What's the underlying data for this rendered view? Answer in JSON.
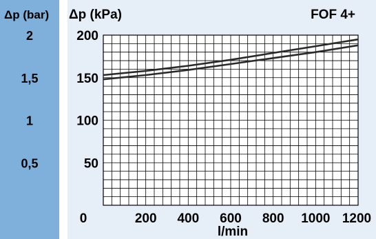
{
  "colors": {
    "background": "#e6eef8",
    "bar_strip": "#7fb0dc",
    "divider": "#ffffff",
    "grid": "#000000",
    "curve": "#2a2a2a"
  },
  "chart_data": {
    "type": "line",
    "title": "FOF 4+",
    "xlabel": "l/min",
    "ylabel": "Δp (kPa)",
    "secondary_ylabel": "Δp (bar)",
    "xlim": [
      0,
      1200
    ],
    "ylim": [
      0,
      200
    ],
    "x_ticks": [
      0,
      200,
      400,
      600,
      800,
      1000,
      1200
    ],
    "x_tick_labels": [
      "0",
      "200",
      "400",
      "600",
      "800",
      "1000",
      "1200"
    ],
    "y_ticks": [
      50,
      100,
      150,
      200
    ],
    "y_tick_labels": [
      "50",
      "100",
      "150",
      "200"
    ],
    "secondary_y_ticks": [
      0.5,
      1,
      1.5,
      2
    ],
    "secondary_y_tick_labels": [
      "0,5",
      "1",
      "1,5",
      "2"
    ],
    "grid": true,
    "series": [
      {
        "x": [
          0,
          200,
          400,
          600,
          800,
          1000,
          1200
        ],
        "y": [
          153,
          158,
          164,
          171,
          179,
          187,
          195
        ]
      },
      {
        "x": [
          0,
          200,
          400,
          600,
          800,
          1000,
          1200
        ],
        "y": [
          148,
          153,
          159,
          166,
          173,
          180,
          188
        ]
      }
    ]
  }
}
